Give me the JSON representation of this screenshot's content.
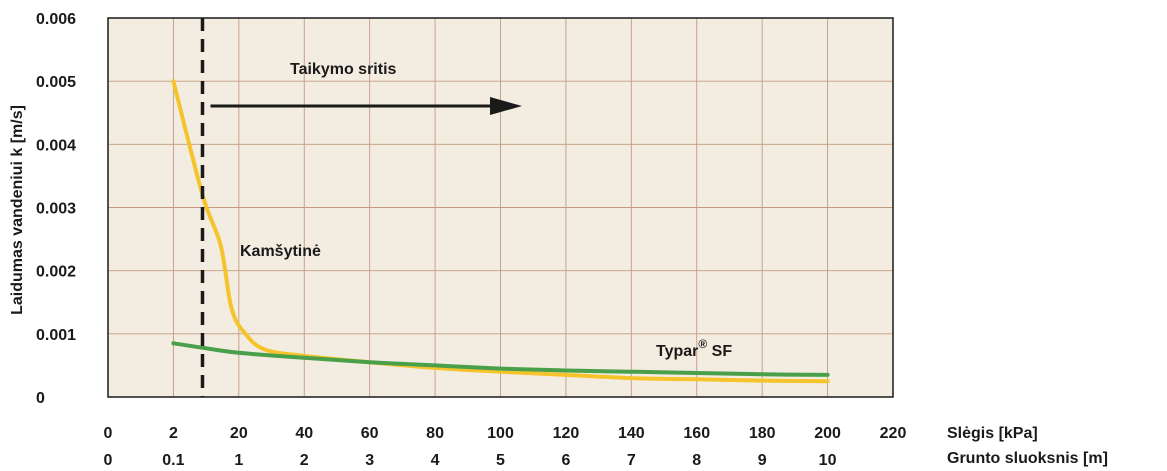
{
  "chart_data": {
    "type": "line",
    "ylabel": "Laidumas vandeniui k [m/s]",
    "xlabel": "Slėgis [kPa]",
    "xlabel2": "Grunto sluoksnis [m]",
    "xlim": [
      0,
      220
    ],
    "ylim": [
      0,
      0.006
    ],
    "grid": true,
    "background": "#f3ece0",
    "x_ticks": [
      "0",
      "2",
      "20",
      "40",
      "60",
      "80",
      "100",
      "120",
      "140",
      "160",
      "180",
      "200",
      "220"
    ],
    "x2_ticks": [
      "0",
      "0.1",
      "1",
      "2",
      "3",
      "4",
      "5",
      "6",
      "7",
      "8",
      "9",
      "10"
    ],
    "y_ticks": [
      "0",
      "0.001",
      "0.002",
      "0.003",
      "0.004",
      "0.005",
      "0.006"
    ],
    "series": [
      {
        "name": "Kamšytinė",
        "color": "#f5c42c",
        "points": [
          [
            2,
            0.005
          ],
          [
            10,
            0.0032
          ],
          [
            15,
            0.0024
          ],
          [
            18,
            0.0014
          ],
          [
            22,
            0.001
          ],
          [
            28,
            0.00075
          ],
          [
            40,
            0.00065
          ],
          [
            60,
            0.00055
          ],
          [
            80,
            0.00046
          ],
          [
            100,
            0.0004
          ],
          [
            120,
            0.00035
          ],
          [
            140,
            0.0003
          ],
          [
            160,
            0.00028
          ],
          [
            180,
            0.00026
          ],
          [
            200,
            0.00025
          ]
        ]
      },
      {
        "name": "Typar® SF",
        "color": "#4aa04a",
        "points": [
          [
            2,
            0.00085
          ],
          [
            10,
            0.00078
          ],
          [
            20,
            0.0007
          ],
          [
            40,
            0.00062
          ],
          [
            60,
            0.00055
          ],
          [
            80,
            0.0005
          ],
          [
            100,
            0.00045
          ],
          [
            120,
            0.00042
          ],
          [
            140,
            0.0004
          ],
          [
            160,
            0.00038
          ],
          [
            180,
            0.00036
          ],
          [
            200,
            0.00035
          ]
        ]
      }
    ],
    "annotations": {
      "application_label": "Taikymo sritis",
      "kamsytine_label": "Kamšytinė",
      "typar_label_main": "Typar",
      "typar_label_sup": "®",
      "typar_label_end": " SF"
    }
  }
}
